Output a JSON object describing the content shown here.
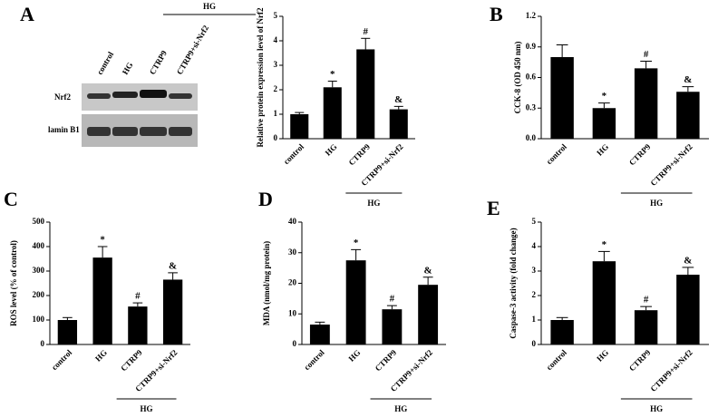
{
  "blot": {
    "panel": "A",
    "group": "HG",
    "lanes": [
      "control",
      "HG",
      "CTRP9",
      "CTRP9+si-Nrf2"
    ],
    "rows": [
      "Nrf2",
      "lamin B1"
    ]
  },
  "chart_data": [
    {
      "type": "bar",
      "ylabel": "Relative protein expression level of Nrf2",
      "categories": [
        "control",
        "HG",
        "CTRP9",
        "CTRP9+si-Nrf2"
      ],
      "values": [
        1.0,
        2.1,
        3.65,
        1.2
      ],
      "errors": [
        0.07,
        0.25,
        0.45,
        0.12
      ],
      "markers": [
        null,
        "*",
        "#",
        "&"
      ],
      "ylim": [
        0,
        5
      ],
      "yticks": [
        0,
        1,
        2,
        3,
        4,
        5
      ],
      "color": "#000000",
      "group_label": "HG"
    },
    {
      "type": "bar",
      "panel": "B",
      "ylabel": "CCK-8 (OD 450 nm)",
      "categories": [
        "control",
        "HG",
        "CTRP9",
        "CTRP9+si-Nrf2"
      ],
      "values": [
        0.8,
        0.3,
        0.69,
        0.46
      ],
      "errors": [
        0.12,
        0.05,
        0.07,
        0.05
      ],
      "markers": [
        null,
        "*",
        "#",
        "&"
      ],
      "ylim": [
        0,
        1.2
      ],
      "yticks": [
        {
          "value": 0,
          "label": "0.0"
        },
        0.3,
        0.6,
        0.9,
        1.2
      ],
      "color": "#000000",
      "group_label": "HG"
    },
    {
      "type": "bar",
      "panel": "C",
      "ylabel": "ROS level (% of control)",
      "categories": [
        "control",
        "HG",
        "CTRP9",
        "CTRP9+si-Nrf2"
      ],
      "values": [
        100,
        355,
        155,
        265
      ],
      "errors": [
        10,
        45,
        15,
        28
      ],
      "markers": [
        null,
        "*",
        "#",
        "&"
      ],
      "ylim": [
        0,
        500
      ],
      "yticks": [
        0,
        100,
        200,
        300,
        400,
        500
      ],
      "color": "#000000",
      "group_label": "HG"
    },
    {
      "type": "bar",
      "panel": "D",
      "ylabel": "MDA (nmol/mg protein)",
      "categories": [
        "control",
        "HG",
        "CTRP9",
        "CTRP9+si-Nrf2"
      ],
      "values": [
        6.5,
        27.5,
        11.5,
        19.5
      ],
      "errors": [
        0.8,
        3.5,
        1.2,
        2.5
      ],
      "markers": [
        null,
        "*",
        "#",
        "&"
      ],
      "ylim": [
        0,
        40
      ],
      "yticks": [
        0,
        10,
        20,
        30,
        40
      ],
      "color": "#000000",
      "group_label": "HG"
    },
    {
      "type": "bar",
      "panel": "E",
      "ylabel": "Caspase-3 activity (fold change)",
      "categories": [
        "control",
        "HG",
        "CTRP9",
        "CTRP9+si-Nrf2"
      ],
      "values": [
        1.0,
        3.4,
        1.4,
        2.85
      ],
      "errors": [
        0.1,
        0.4,
        0.15,
        0.3
      ],
      "markers": [
        null,
        "*",
        "#",
        "&"
      ],
      "ylim": [
        0,
        5
      ],
      "yticks": [
        0,
        1,
        2,
        3,
        4,
        5
      ],
      "color": "#000000",
      "group_label": "HG"
    }
  ]
}
